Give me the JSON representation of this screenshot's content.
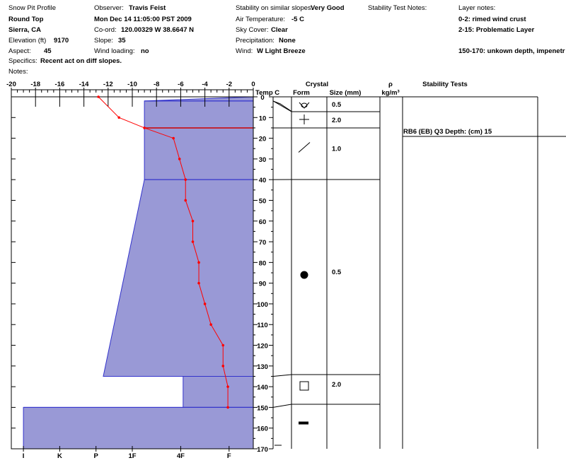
{
  "header": {
    "col1": {
      "title": "Snow Pit Profile",
      "location": "Round Top",
      "region": "Sierra, CA",
      "elevation_label": "Elevation (ft)",
      "elevation_value": "9170",
      "aspect_label": "Aspect:",
      "aspect_value": "45",
      "specifics_label": "Specifics:",
      "specifics_value": "Recent act on diff slopes.",
      "notes_label": "Notes:"
    },
    "col2": {
      "observer_label": "Observer:",
      "observer_value": "Travis Feist",
      "datetime": "Mon Dec 14 11:05:00 PST 2009",
      "coord_label": "Co-ord:",
      "coord_value": "120.00329 W 38.6647 N",
      "slope_label": "Slope:",
      "slope_value": "35",
      "wind_loading_label": "Wind loading:",
      "wind_loading_value": "no"
    },
    "col3": {
      "stability_label": "Stability on similar slopes:",
      "stability_value": "Very Good",
      "air_temp_label": "Air Temperature:",
      "air_temp_value": "-5 C",
      "sky_label": "Sky Cover:",
      "sky_value": "Clear",
      "precip_label": "Precipitation:",
      "precip_value": "None",
      "wind_label": "Wind:",
      "wind_value": "W Light Breeze"
    },
    "col4": {
      "stability_notes_label": "Stability Test Notes:"
    },
    "col5": {
      "layer_notes_label": "Layer notes:",
      "note1": "0-2: rimed wind crust",
      "note2": "2-15: Problematic Layer",
      "note3": "150-170: unkown depth, impenetr"
    }
  },
  "chart_data": {
    "type": "snow_pit_profile",
    "temperature_axis": {
      "label": "Temp C",
      "ticks": [
        "-20",
        "-18",
        "-16",
        "-14",
        "-12",
        "-10",
        "-8",
        "-6",
        "-4",
        "-2",
        "0"
      ],
      "range": [
        -20,
        0
      ]
    },
    "hardness_axis": {
      "ticks": [
        "I",
        "K",
        "P",
        "1F",
        "4F",
        "F"
      ],
      "tick_temps": [
        -19,
        -16,
        -13,
        -10,
        -6,
        -2
      ]
    },
    "depth_axis": {
      "ticks": [
        "0",
        "10",
        "20",
        "30",
        "40",
        "50",
        "60",
        "70",
        "80",
        "90",
        "100",
        "110",
        "120",
        "130",
        "140",
        "150",
        "160",
        "170"
      ],
      "range": [
        0,
        170
      ]
    },
    "hardness_layers": [
      {
        "top": 0,
        "bottom": 2,
        "width_temp": [
          0,
          -9
        ],
        "note": "rimed"
      },
      {
        "top": 2,
        "bottom": 15,
        "width_temp": [
          -9,
          -9
        ]
      },
      {
        "top": 15,
        "bottom": 40,
        "width_temp": [
          -9,
          -9
        ]
      },
      {
        "top": 40,
        "bottom": 135,
        "width_temp": [
          -9,
          -12.4
        ]
      },
      {
        "top": 135,
        "bottom": 150,
        "width_temp": [
          -5.8,
          -5.8
        ]
      },
      {
        "top": 150,
        "bottom": 170,
        "width_temp": [
          -19,
          -19
        ]
      }
    ],
    "temperature_profile": [
      {
        "depth": 0,
        "temp": -12.8
      },
      {
        "depth": 10,
        "temp": -11.1
      },
      {
        "depth": 15,
        "temp": -9.0
      },
      {
        "depth": 20,
        "temp": -6.6
      },
      {
        "depth": 30,
        "temp": -6.1
      },
      {
        "depth": 40,
        "temp": -5.6
      },
      {
        "depth": 50,
        "temp": -5.6
      },
      {
        "depth": 60,
        "temp": -5.0
      },
      {
        "depth": 70,
        "temp": -5.0
      },
      {
        "depth": 80,
        "temp": -4.5
      },
      {
        "depth": 90,
        "temp": -4.5
      },
      {
        "depth": 100,
        "temp": -4.0
      },
      {
        "depth": 110,
        "temp": -3.5
      },
      {
        "depth": 120,
        "temp": -2.5
      },
      {
        "depth": 130,
        "temp": -2.5
      },
      {
        "depth": 140,
        "temp": -2.1
      },
      {
        "depth": 150,
        "temp": -2.1
      }
    ],
    "layer_boundaries": [
      2,
      15,
      40,
      135,
      150
    ],
    "problem_layer_depth": 15,
    "crystal_columns": {
      "crystal": "Crystal",
      "form": "Form",
      "size": "Size (mm)",
      "density_symbol": "ρ",
      "density_unit": "kg/m³",
      "stability_tests": "Stability Tests"
    },
    "crystal_layers": [
      {
        "top": 0,
        "bottom": 7,
        "form": "rimed",
        "size": "0.5"
      },
      {
        "top": 7,
        "bottom": 15,
        "form": "decomposed",
        "size": "2.0"
      },
      {
        "top": 15,
        "bottom": 40,
        "form": "fragmented",
        "size": "1.0"
      },
      {
        "top": 40,
        "bottom": 135,
        "form": "rounded",
        "size": "0.5"
      },
      {
        "top": 135,
        "bottom": 150,
        "form": "faceted",
        "size": "2.0"
      },
      {
        "top": 150,
        "bottom": 170,
        "form": "ice",
        "size": ""
      }
    ],
    "stability_tests": [
      {
        "depth": 15,
        "text": "RB6 (EB) Q3 Depth: (cm) 15"
      }
    ]
  }
}
